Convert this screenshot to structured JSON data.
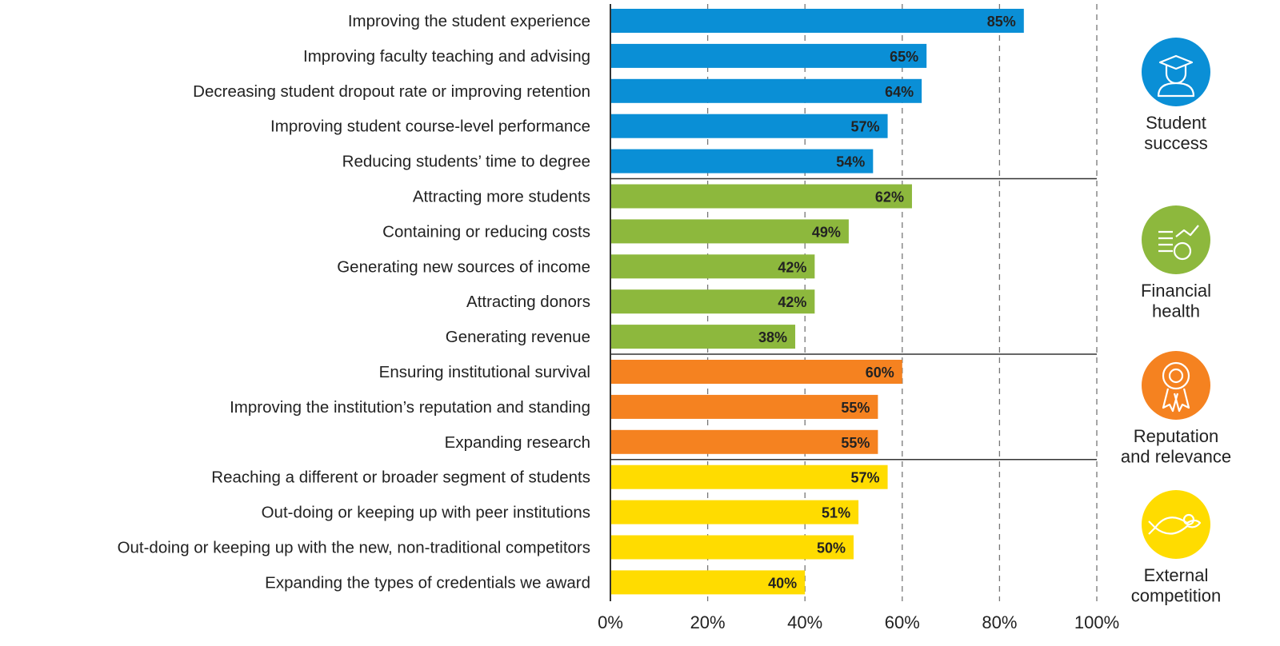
{
  "chart_data": {
    "type": "bar",
    "orientation": "horizontal",
    "xlim": [
      0,
      100
    ],
    "x_ticks": [
      "0%",
      "20%",
      "40%",
      "60%",
      "80%",
      "100%"
    ],
    "grid": "vertical dashed",
    "groups": [
      {
        "name_lines": [
          "Student",
          "success"
        ],
        "color": "#0a8fd6",
        "icon": "graduate-icon",
        "categories": [
          "Improving the student experience",
          "Improving faculty teaching and advising",
          "Decreasing student dropout rate or improving retention",
          "Improving student course-level performance",
          "Reducing students’ time to degree"
        ],
        "values": [
          85,
          65,
          64,
          57,
          54
        ]
      },
      {
        "name_lines": [
          "Financial",
          "health"
        ],
        "color": "#8db83d",
        "icon": "coins-growth-icon",
        "categories": [
          "Attracting more students",
          "Containing or reducing costs",
          "Generating new sources of income",
          "Attracting donors",
          "Generating revenue"
        ],
        "values": [
          62,
          49,
          42,
          42,
          38
        ]
      },
      {
        "name_lines": [
          "Reputation",
          "and relevance"
        ],
        "color": "#f58220",
        "icon": "award-rosette-icon",
        "categories": [
          "Ensuring institutional survival",
          "Improving the institution’s reputation and standing",
          "Expanding research"
        ],
        "values": [
          60,
          55,
          55
        ]
      },
      {
        "name_lines": [
          "External",
          "competition"
        ],
        "color": "#ffdc00",
        "icon": "fish-eating-fish-icon",
        "categories": [
          "Reaching a different or broader segment of students",
          "Out-doing or keeping up with peer institutions",
          "Out-doing or keeping up with the new, non-traditional competitors",
          "Expanding the types of credentials we award"
        ],
        "values": [
          57,
          51,
          50,
          40
        ]
      }
    ]
  }
}
